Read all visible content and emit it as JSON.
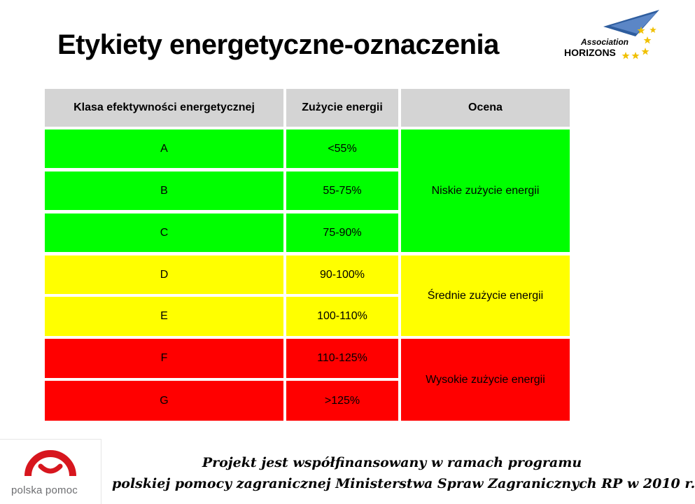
{
  "slide": {
    "title": "Etykiety energetyczne-oznaczenia"
  },
  "logo_horizons": {
    "line1": "Association",
    "line2": "HORIZONS",
    "colors": {
      "kite": "#2e5d9e",
      "stars": "#f0c000"
    }
  },
  "table": {
    "headers": [
      "Klasa efektywności energetycznej",
      "Zużycie energii",
      "Ocena"
    ],
    "rows": [
      {
        "klasa": "A",
        "zuzycie": "<55%"
      },
      {
        "klasa": "B",
        "zuzycie": "55-75%"
      },
      {
        "klasa": "C",
        "zuzycie": "75-90%"
      },
      {
        "klasa": "D",
        "zuzycie": "90-100%"
      },
      {
        "klasa": "E",
        "zuzycie": "100-110%"
      },
      {
        "klasa": "F",
        "zuzycie": "110-125%"
      },
      {
        "klasa": "G",
        "zuzycie": ">125%"
      }
    ],
    "ratings": {
      "low": "Niskie zużycie energii",
      "medium": "Średnie zużycie energii",
      "high": "Wysokie zużycie energii"
    },
    "colors": {
      "header": "#d4d4d4",
      "green": "#00ff00",
      "yellow": "#ffff00",
      "red": "#ff0000"
    }
  },
  "polska_pomoc": {
    "label": "polska pomoc",
    "colors": {
      "arc": "#d7161e",
      "text": "#6d6e71"
    }
  },
  "footer": {
    "line1": "Projekt jest współfinansowany w ramach programu",
    "line2": "polskiej pomocy zagranicznej Ministerstwa Spraw Zagranicznych RP w 2010 r."
  }
}
